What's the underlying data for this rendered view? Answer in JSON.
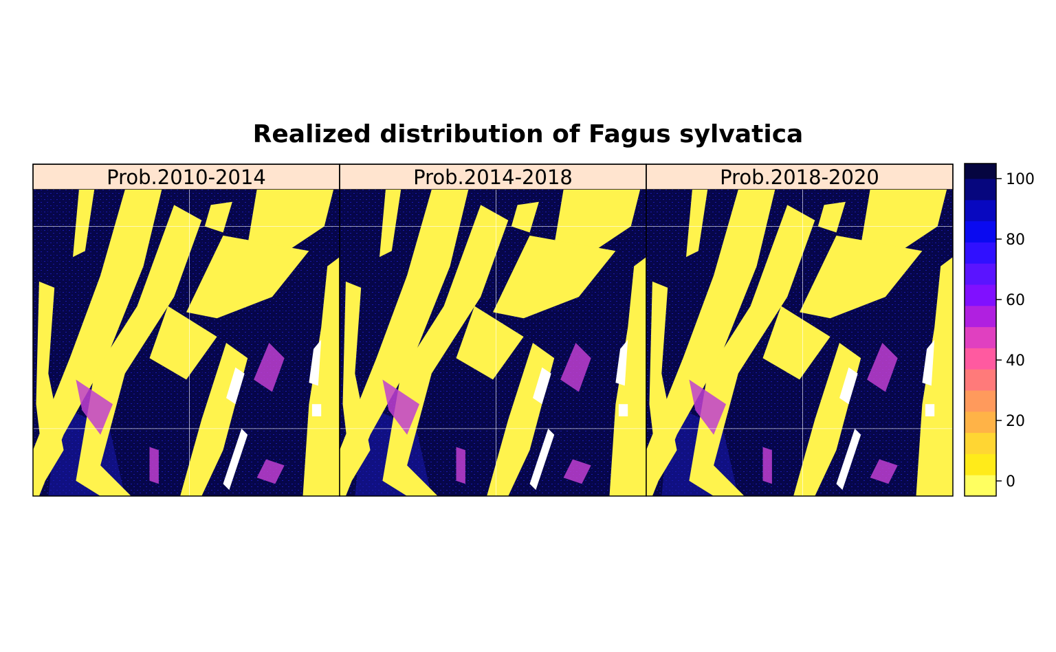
{
  "chart_data": {
    "type": "heatmap",
    "title": "Realized distribution of Fagus sylvatica",
    "panels": [
      {
        "label": "Prob.2010-2014"
      },
      {
        "label": "Prob.2014-2018"
      },
      {
        "label": "Prob.2018-2020"
      }
    ],
    "colorbar": {
      "range": [
        -5,
        105
      ],
      "ticks": [
        0,
        20,
        40,
        60,
        80,
        100
      ],
      "tick_labels": [
        "0",
        "20",
        "40",
        "60",
        "80",
        "100"
      ],
      "bins": [
        {
          "from": -5,
          "to": 2,
          "color": "#FFFF60"
        },
        {
          "from": 2,
          "to": 9,
          "color": "#FFEB1A"
        },
        {
          "from": 9,
          "to": 16,
          "color": "#FFD633"
        },
        {
          "from": 16,
          "to": 23,
          "color": "#FFB347"
        },
        {
          "from": 23,
          "to": 30,
          "color": "#FF9A5C"
        },
        {
          "from": 30,
          "to": 37,
          "color": "#FF7A7A"
        },
        {
          "from": 37,
          "to": 44,
          "color": "#FF5AA0"
        },
        {
          "from": 44,
          "to": 51,
          "color": "#E040C0"
        },
        {
          "from": 51,
          "to": 58,
          "color": "#B020E0"
        },
        {
          "from": 58,
          "to": 65,
          "color": "#8010FF"
        },
        {
          "from": 65,
          "to": 72,
          "color": "#5A14FF"
        },
        {
          "from": 72,
          "to": 79,
          "color": "#3010FF"
        },
        {
          "from": 79,
          "to": 86,
          "color": "#0A0AF0"
        },
        {
          "from": 86,
          "to": 93,
          "color": "#0808C0"
        },
        {
          "from": 93,
          "to": 100,
          "color": "#06067E"
        },
        {
          "from": 100,
          "to": 105,
          "color": "#050540"
        }
      ]
    },
    "map_colors": {
      "high": "#06064A",
      "mid": "#1A1AB0",
      "transition": "#C040D0",
      "low": "#FFF34D",
      "no_data": "#FFFFFF",
      "strip_background": "#FFE4CF",
      "grid": "#FFFFFF"
    }
  }
}
